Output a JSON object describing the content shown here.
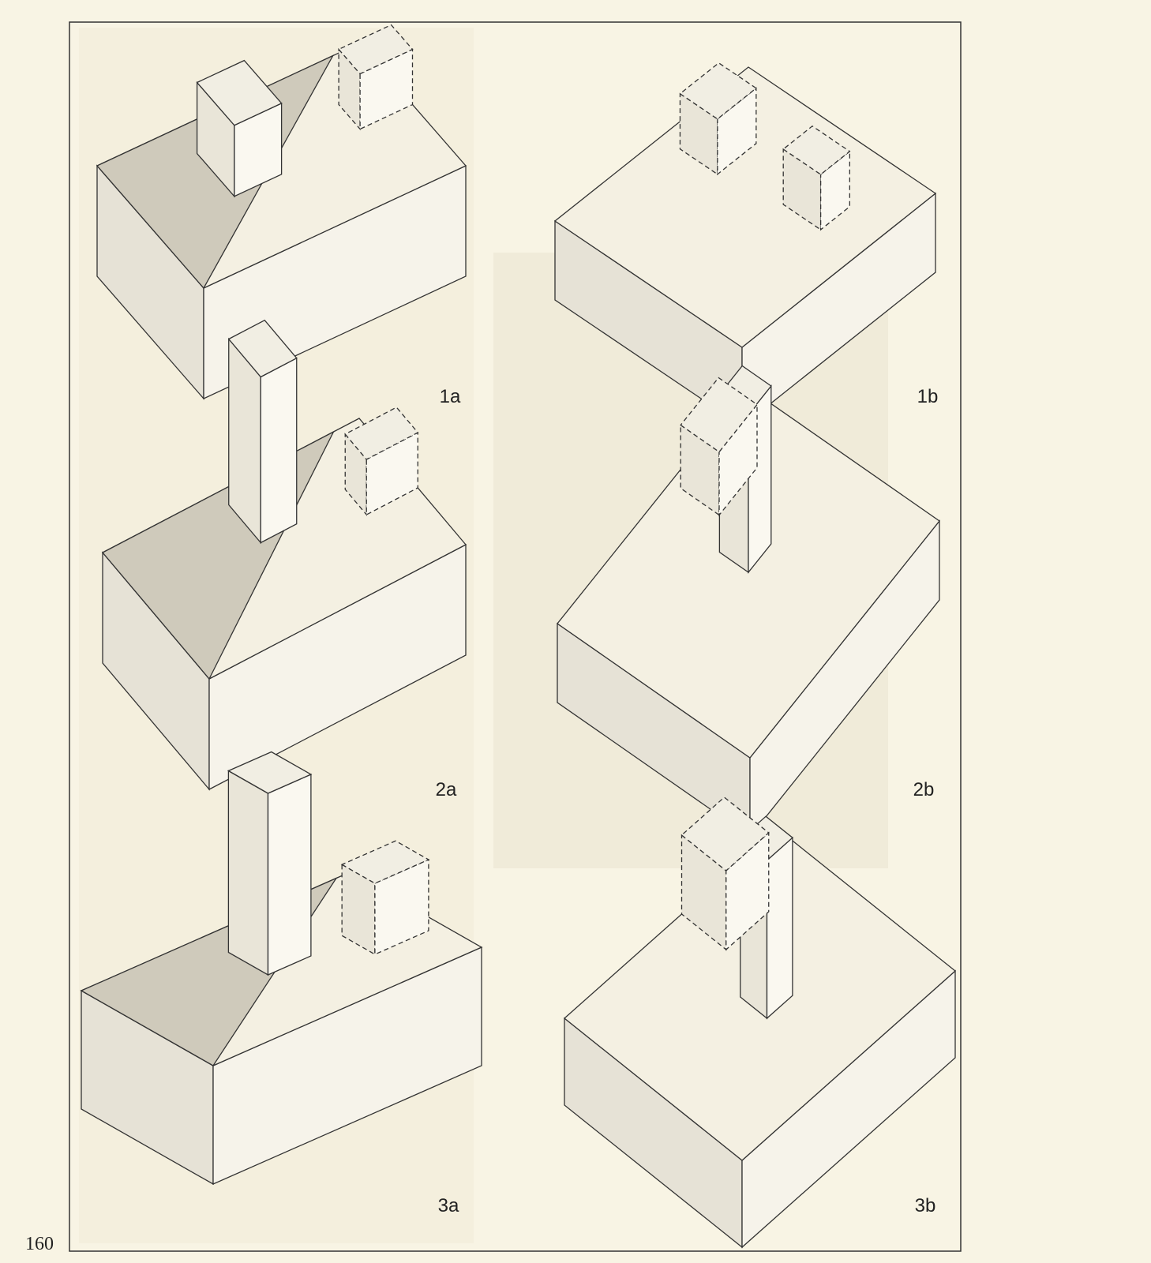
{
  "page_number": "160",
  "figures": [
    {
      "label": "1a"
    },
    {
      "label": "1b"
    },
    {
      "label": "2a"
    },
    {
      "label": "2b"
    },
    {
      "label": "3a"
    },
    {
      "label": "3b"
    }
  ]
}
